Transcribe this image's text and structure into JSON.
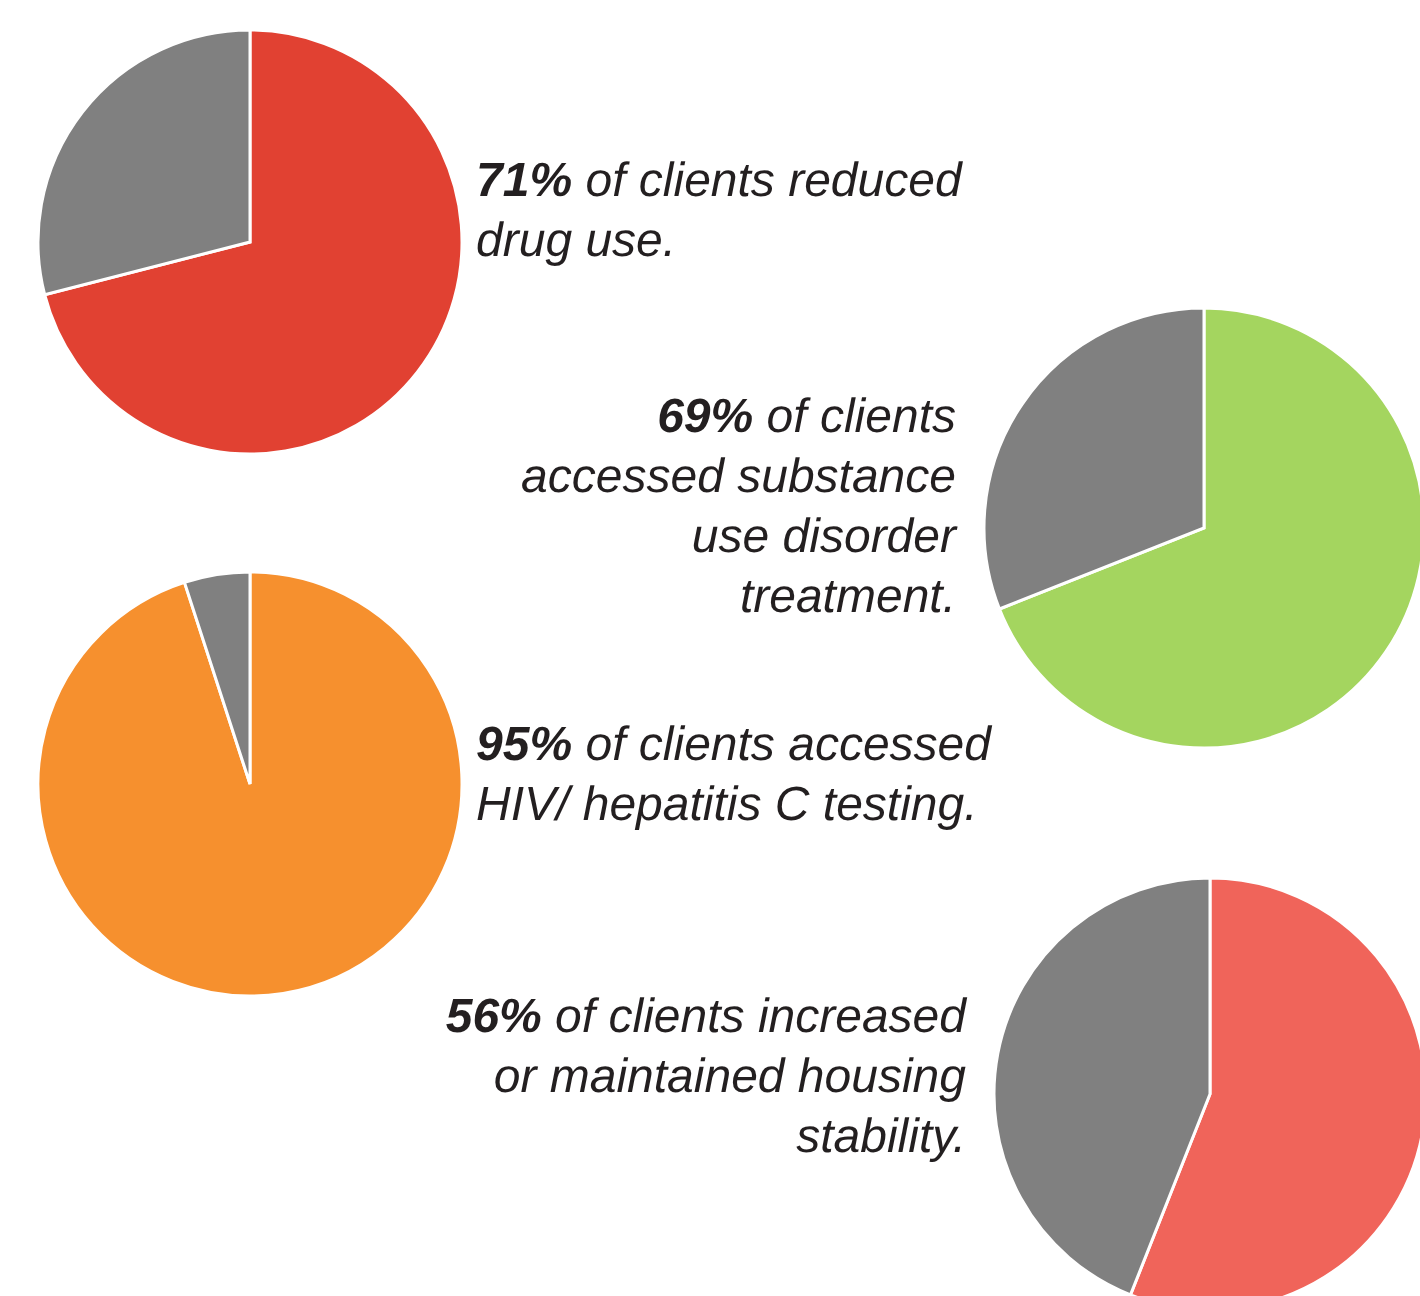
{
  "chart_data": [
    {
      "type": "pie",
      "title": "71% of clients reduced drug use.",
      "categories": [
        null,
        null
      ],
      "values": [
        71,
        29
      ],
      "colors": [
        "#e14132",
        "#808080"
      ]
    },
    {
      "type": "pie",
      "title": "69% of clients accessed substance use disorder treatment.",
      "categories": [
        null,
        null
      ],
      "values": [
        69,
        31
      ],
      "colors": [
        "#a4d55f",
        "#808080"
      ]
    },
    {
      "type": "pie",
      "title": "95% of clients accessed HIV/ hepatitis C testing.",
      "categories": [
        null,
        null
      ],
      "values": [
        95,
        5
      ],
      "colors": [
        "#f6902e",
        "#808080"
      ]
    },
    {
      "type": "pie",
      "title": "56% of clients increased or maintained housing stability.",
      "categories": [
        null,
        null
      ],
      "values": [
        56,
        44
      ],
      "colors": [
        "#f0645a",
        "#808080"
      ]
    }
  ]
}
